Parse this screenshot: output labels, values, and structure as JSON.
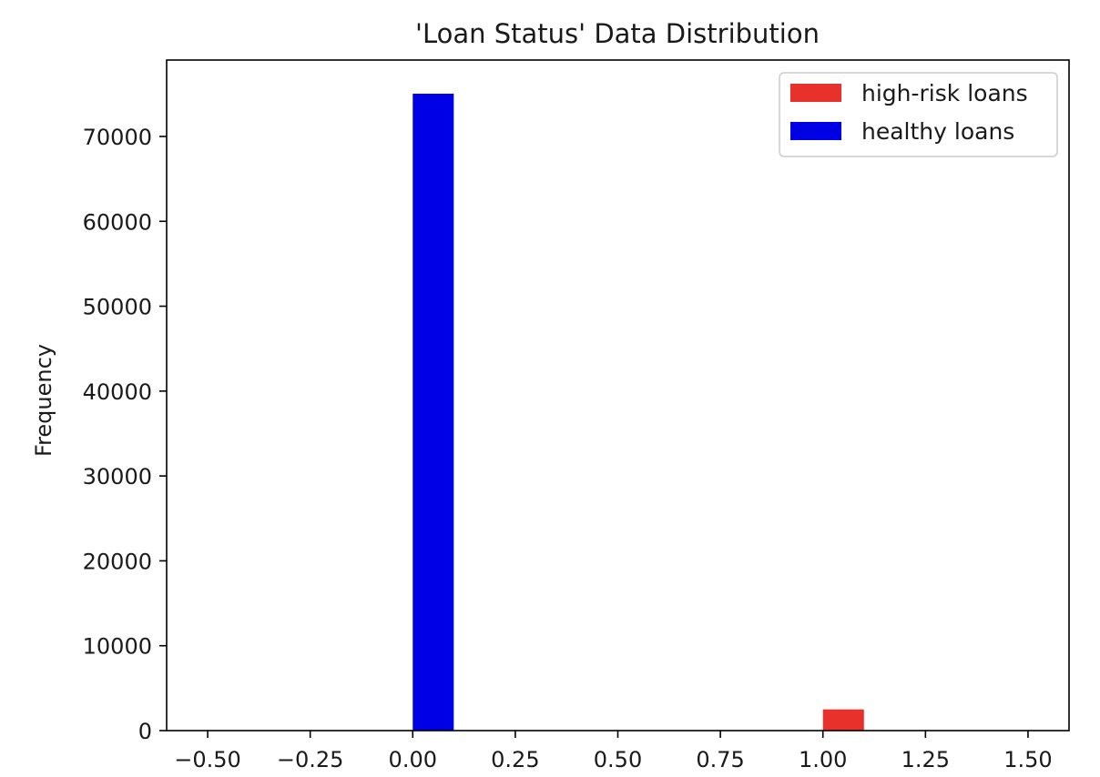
{
  "chart_data": {
    "type": "bar",
    "title": "'Loan Status' Data Distribution",
    "xlabel": "",
    "ylabel": "Frequency",
    "xlim": [
      -0.6,
      1.6
    ],
    "ylim": [
      0,
      79000
    ],
    "x_ticks": [
      -0.5,
      -0.25,
      0.0,
      0.25,
      0.5,
      0.75,
      1.0,
      1.25,
      1.5
    ],
    "x_tick_labels": [
      "−0.50",
      "−0.25",
      "0.00",
      "0.25",
      "0.50",
      "0.75",
      "1.00",
      "1.25",
      "1.50"
    ],
    "y_ticks": [
      0,
      10000,
      20000,
      30000,
      40000,
      50000,
      60000,
      70000
    ],
    "y_tick_labels": [
      "0",
      "10000",
      "20000",
      "30000",
      "40000",
      "50000",
      "60000",
      "70000"
    ],
    "grid": false,
    "legend_position": "top-right",
    "series": [
      {
        "name": "high-risk loans",
        "color": "#e8312a",
        "bins": [
          [
            1.0,
            1.1
          ]
        ],
        "values": [
          2500
        ]
      },
      {
        "name": "healthy loans",
        "color": "#0000e6",
        "bins": [
          [
            0.0,
            0.1
          ]
        ],
        "values": [
          75036
        ]
      }
    ]
  }
}
